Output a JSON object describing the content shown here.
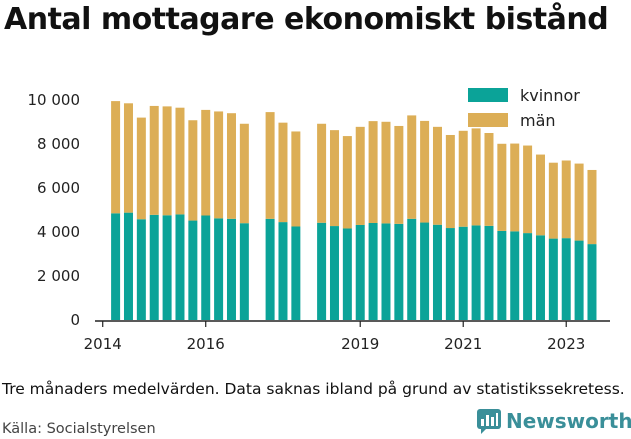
{
  "chart_data": {
    "type": "bar",
    "stacked": true,
    "title": "Antal mottagare ekonomiskt bistånd",
    "xlabel": "",
    "ylabel": "",
    "ylim": [
      0,
      10000
    ],
    "yticks": [
      0,
      2000,
      4000,
      6000,
      8000,
      10000
    ],
    "ytick_labels": [
      "0",
      "2 000",
      "4 000",
      "6 000",
      "8 000",
      "10 000"
    ],
    "xticks": [
      2014,
      2016,
      2019,
      2021,
      2023
    ],
    "xtick_labels": [
      "2014",
      "2016",
      "2019",
      "2021",
      "2023"
    ],
    "grid": false,
    "legend_position": "top-right",
    "x": [
      2014.25,
      2014.5,
      2014.75,
      2015.0,
      2015.25,
      2015.5,
      2015.75,
      2016.0,
      2016.25,
      2016.5,
      2016.75,
      2017.25,
      2017.5,
      2017.75,
      2018.25,
      2018.5,
      2018.75,
      2019.0,
      2019.25,
      2019.5,
      2019.75,
      2020.0,
      2020.25,
      2020.5,
      2020.75,
      2021.0,
      2021.25,
      2021.5,
      2021.75,
      2022.0,
      2022.25,
      2022.5,
      2022.75,
      2023.0,
      2023.25,
      2023.5
    ],
    "series": [
      {
        "name": "kvinnor",
        "color": "#0ba398",
        "values": [
          4850,
          4880,
          4580,
          4780,
          4760,
          4800,
          4520,
          4750,
          4620,
          4600,
          4400,
          4600,
          4450,
          4250,
          4420,
          4270,
          4160,
          4320,
          4410,
          4390,
          4370,
          4600,
          4430,
          4330,
          4180,
          4240,
          4300,
          4280,
          4050,
          4030,
          3950,
          3850,
          3700,
          3720,
          3610,
          3450
        ]
      },
      {
        "name": "män",
        "color": "#dcae56",
        "values": [
          5100,
          4970,
          4620,
          4950,
          4950,
          4850,
          4560,
          4800,
          4860,
          4800,
          4520,
          4850,
          4520,
          4320,
          4500,
          4360,
          4200,
          4460,
          4630,
          4620,
          4450,
          4700,
          4620,
          4450,
          4230,
          4360,
          4410,
          4220,
          3960,
          3990,
          3980,
          3670,
          3450,
          3530,
          3500,
          3370
        ]
      }
    ]
  },
  "note": "Tre månaders medelvärden. Data saknas ibland på grund av statistikssekretess.",
  "source": "Källa: Socialstyrelsen",
  "brand": {
    "name": "Newsworthy",
    "color": "#3a8f99"
  }
}
